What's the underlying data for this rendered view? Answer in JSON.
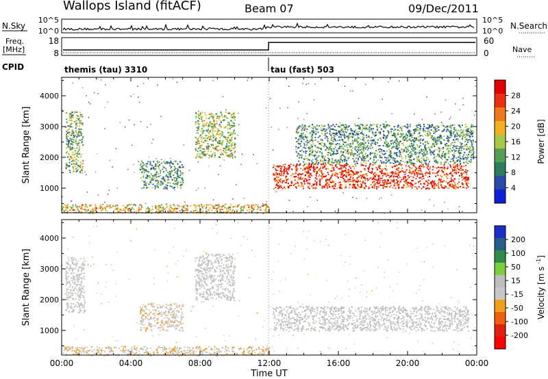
{
  "header": {
    "title": "Wallops Island (fitACF)",
    "beam": "Beam 07",
    "date": "09/Dec/2011"
  },
  "nsky_panel": {
    "left_label": "N.Sky",
    "ticks_left": [
      "10^5",
      "10^0"
    ],
    "right_label": "N.Search",
    "ticks_right": [
      "10^5",
      "10^0"
    ]
  },
  "freq_panel": {
    "label_line1": "Freq.",
    "label_line2": "[MHz]",
    "ticks_left": [
      "18",
      "8"
    ],
    "right_label": "Nave",
    "ticks_right": [
      "60",
      "0"
    ]
  },
  "cpid_panel": {
    "label": "CPID",
    "mode1": "themis (tau) 3310",
    "mode2": "tau (fast) 503"
  },
  "colors": {
    "power_scale": [
      "#1020d8",
      "#2a4aa8",
      "#2e7d5a",
      "#55a050",
      "#a8c84a",
      "#f2b020",
      "#f07818",
      "#e83010",
      "#e00000"
    ],
    "velocity_scale": [
      "#1c2ec8",
      "#2a5c8a",
      "#2f8d4a",
      "#7cd040",
      "#bdbdbd",
      "#c8c8c8",
      "#f0a020",
      "#f06010",
      "#e02010",
      "#ff0000"
    ]
  },
  "chart_data": [
    {
      "type": "heatmap",
      "title": "",
      "xlabel": "",
      "ylabel": "Slant Range [km]",
      "x_ticks": [
        "00:00",
        "04:00",
        "08:00",
        "12:00",
        "16:00",
        "20:00",
        "00:00"
      ],
      "y_ticks": [
        "1000",
        "2000",
        "3000",
        "4000"
      ],
      "ylim": [
        200,
        4600
      ],
      "xlim_hours": [
        0,
        24
      ],
      "colorbar": {
        "label": "Power [dB]",
        "ticks": [
          "28",
          "24",
          "20",
          "16",
          "12",
          "8",
          "4"
        ],
        "range": [
          0,
          30
        ]
      },
      "features": [
        {
          "t_start": 0.2,
          "t_end": 1.2,
          "range_km": [
            1500,
            3500
          ],
          "value_db": 12
        },
        {
          "t_start": 4.5,
          "t_end": 7.0,
          "range_km": [
            1000,
            1900
          ],
          "value_db": 10
        },
        {
          "t_start": 7.7,
          "t_end": 10.0,
          "range_km": [
            2000,
            3500
          ],
          "value_db": 14
        },
        {
          "t_start": 12.2,
          "t_end": 23.5,
          "range_km": [
            1000,
            1800
          ],
          "value_db": 26
        },
        {
          "t_start": 13.5,
          "t_end": 23.8,
          "range_km": [
            1800,
            3100
          ],
          "value_db": 10
        },
        {
          "t_start": 0.0,
          "t_end": 12.0,
          "range_km": [
            200,
            500
          ],
          "value_db": 18
        }
      ]
    },
    {
      "type": "heatmap",
      "title": "",
      "xlabel": "Time UT",
      "ylabel": "Slant Range [km]",
      "x_ticks": [
        "00:00",
        "04:00",
        "08:00",
        "12:00",
        "16:00",
        "20:00",
        "00:00"
      ],
      "y_ticks": [
        "1000",
        "2000",
        "3000",
        "4000"
      ],
      "ylim": [
        200,
        4600
      ],
      "xlim_hours": [
        0,
        24
      ],
      "colorbar": {
        "label": "Velocity [m s^-1]",
        "ticks": [
          "200",
          "100",
          "50",
          "15",
          "-15",
          "-50",
          "-100",
          "-200"
        ],
        "range": [
          -250,
          250
        ]
      },
      "features": [
        {
          "t_start": 0.2,
          "t_end": 1.3,
          "range_km": [
            1600,
            3400
          ],
          "value_ms": 0
        },
        {
          "t_start": 4.5,
          "t_end": 7.0,
          "range_km": [
            1000,
            1900
          ],
          "value_ms": -30
        },
        {
          "t_start": 7.7,
          "t_end": 10.0,
          "range_km": [
            2000,
            3500
          ],
          "value_ms": 0
        },
        {
          "t_start": 12.2,
          "t_end": 23.5,
          "range_km": [
            1000,
            1800
          ],
          "value_ms": 0
        },
        {
          "t_start": 0.0,
          "t_end": 12.0,
          "range_km": [
            200,
            500
          ],
          "value_ms": -40
        }
      ]
    }
  ]
}
